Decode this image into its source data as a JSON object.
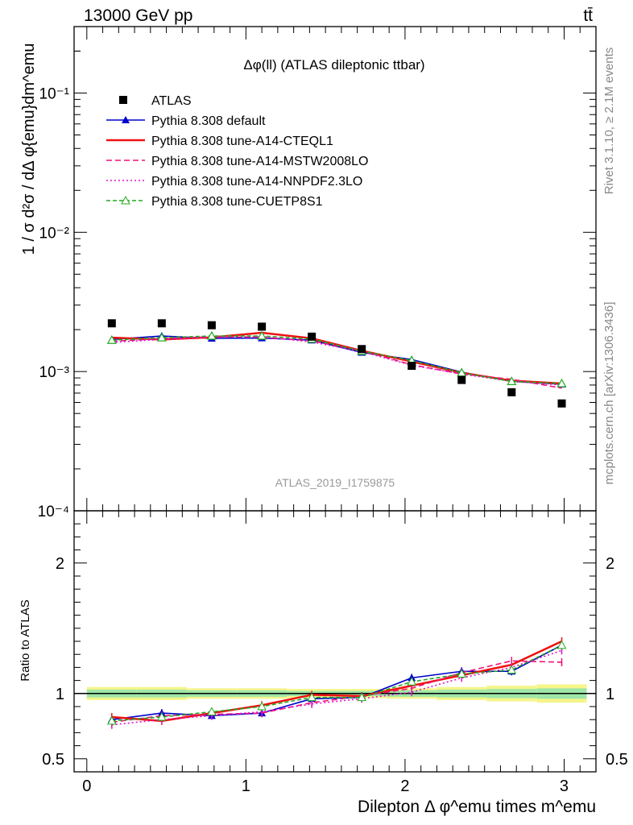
{
  "header": {
    "energy_label": "13000 GeV pp",
    "process_label": "tt̄"
  },
  "side_labels": {
    "rivet": "Rivet 3.1.10, ≥ 2.1M events",
    "mcplots": "mcplots.cern.ch [arXiv:1306.3436]"
  },
  "watermark": "ATLAS_2019_I1759875",
  "chart_data": [
    {
      "type": "line",
      "title": "Δφ(ll) (ATLAS dileptonic ttbar)",
      "ylabel": "1 / σ  d²σ / dΔ φ{emu}dm^emu",
      "yscale": "log",
      "xlim": [
        -0.08,
        3.2
      ],
      "ylim": [
        0.0001,
        0.3
      ],
      "y_ticks": [
        {
          "value": 0.0001,
          "label": "10⁻⁴"
        },
        {
          "value": 0.001,
          "label": "10⁻³"
        },
        {
          "value": 0.01,
          "label": "10⁻²"
        },
        {
          "value": 0.1,
          "label": "10⁻¹"
        }
      ],
      "legend_position": "top-left",
      "x": [
        0.157,
        0.471,
        0.785,
        1.1,
        1.414,
        1.728,
        2.042,
        2.356,
        2.67,
        2.985
      ],
      "data_series": {
        "name": "ATLAS",
        "values": [
          0.00222,
          0.00222,
          0.00215,
          0.0021,
          0.00178,
          0.00145,
          0.0011,
          0.00087,
          0.00071,
          0.00059
        ]
      },
      "series": [
        {
          "name": "Pythia 8.308 default",
          "color": "#0000cc",
          "dash": "solid",
          "marker": "triangle-filled",
          "values": [
            0.0017,
            0.0018,
            0.00173,
            0.00174,
            0.00168,
            0.00137,
            0.00122,
            0.00099,
            0.00085,
            0.00081
          ]
        },
        {
          "name": "Pythia 8.308 tune-A14-CTEQL1",
          "color": "#ee1111",
          "dash": "solid",
          "marker": "none",
          "values": [
            0.00175,
            0.0017,
            0.00176,
            0.0019,
            0.00173,
            0.00141,
            0.00118,
            0.00098,
            0.00086,
            0.00082
          ]
        },
        {
          "name": "Pythia 8.308 tune-A14-MSTW2008LO",
          "color": "#ee1177",
          "dash": "dashed",
          "marker": "none",
          "values": [
            0.00165,
            0.00172,
            0.00178,
            0.00176,
            0.00166,
            0.00141,
            0.00112,
            0.00096,
            0.00088,
            0.00076
          ]
        },
        {
          "name": "Pythia 8.308 tune-A14-NNPDF2.3LO",
          "color": "#dd11cc",
          "dash": "dotted",
          "marker": "none",
          "values": [
            0.00162,
            0.0017,
            0.00177,
            0.00178,
            0.00163,
            0.00139,
            0.00111,
            0.00096,
            0.00085,
            0.0008
          ]
        },
        {
          "name": "Pythia 8.308 tune-CUETP8S1",
          "color": "#22aa22",
          "dash": "dashed",
          "marker": "triangle-open",
          "values": [
            0.00168,
            0.00175,
            0.0018,
            0.0018,
            0.00171,
            0.0014,
            0.0012,
            0.00098,
            0.00085,
            0.00082
          ]
        }
      ]
    },
    {
      "type": "line",
      "ylabel": "Ratio to ATLAS",
      "xlabel": "Dilepton Δ φ^emu times m^emu",
      "xlim": [
        -0.08,
        3.2
      ],
      "ylim": [
        0.4,
        2.4
      ],
      "x_ticks": [
        0,
        1,
        2,
        3
      ],
      "y_ticks": [
        0.5,
        1,
        2
      ],
      "x": [
        0.157,
        0.471,
        0.785,
        1.1,
        1.414,
        1.728,
        2.042,
        2.356,
        2.67,
        2.985
      ],
      "reference": 1.0,
      "band_green_halfwidth": [
        0.03,
        0.03,
        0.025,
        0.025,
        0.02,
        0.02,
        0.025,
        0.03,
        0.035,
        0.04
      ],
      "band_yellow_halfwidth": [
        0.05,
        0.05,
        0.04,
        0.04,
        0.035,
        0.035,
        0.04,
        0.05,
        0.06,
        0.07
      ],
      "series": [
        {
          "name": "Pythia 8.308 default",
          "values": [
            0.8,
            0.85,
            0.83,
            0.85,
            0.96,
            0.97,
            1.12,
            1.17,
            1.17,
            1.37
          ]
        },
        {
          "name": "Pythia 8.308 tune-A14-CTEQL1",
          "values": [
            0.82,
            0.79,
            0.85,
            0.91,
            0.99,
            0.98,
            1.06,
            1.14,
            1.22,
            1.4
          ]
        },
        {
          "name": "Pythia 8.308 tune-A14-MSTW2008LO",
          "values": [
            0.78,
            0.83,
            0.84,
            0.85,
            0.93,
            0.98,
            1.04,
            1.16,
            1.25,
            1.24
          ]
        },
        {
          "name": "Pythia 8.308 tune-A14-NNPDF2.3LO",
          "values": [
            0.76,
            0.8,
            0.83,
            0.86,
            0.92,
            0.96,
            1.01,
            1.12,
            1.2,
            1.33
          ]
        },
        {
          "name": "Pythia 8.308 tune-CUETP8S1",
          "values": [
            0.79,
            0.82,
            0.86,
            0.9,
            0.97,
            0.97,
            1.09,
            1.15,
            1.18,
            1.37
          ]
        }
      ]
    }
  ]
}
